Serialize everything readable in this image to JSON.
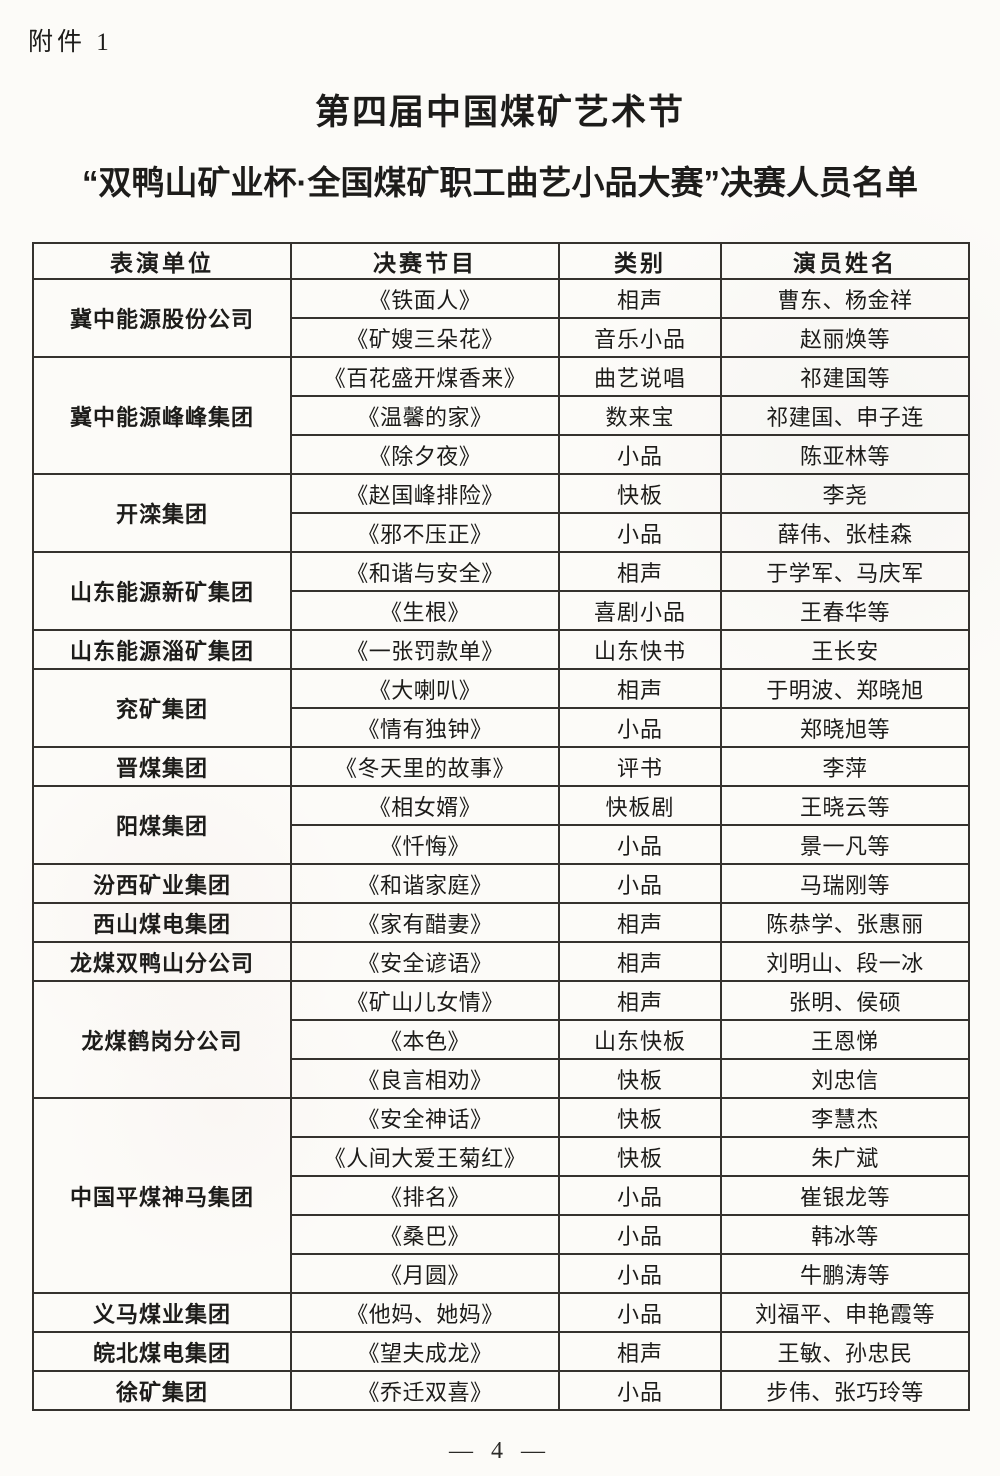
{
  "page": {
    "attachment_label": "附件 1",
    "title": "第四届中国煤矿艺术节",
    "subtitle": "“双鸭山矿业杯·全国煤矿职工曲艺小品大赛”决赛人员名单",
    "page_number": "— 4 —"
  },
  "table": {
    "headers": [
      "表演单位",
      "决赛节目",
      "类别",
      "演员姓名"
    ],
    "groups": [
      {
        "unit": "冀中能源股份公司",
        "rows": [
          {
            "program": "《铁面人》",
            "category": "相声",
            "performers": "曹东、杨金祥"
          },
          {
            "program": "《矿嫂三朵花》",
            "category": "音乐小品",
            "performers": "赵丽焕等"
          }
        ]
      },
      {
        "unit": "冀中能源峰峰集团",
        "rows": [
          {
            "program": "《百花盛开煤香来》",
            "category": "曲艺说唱",
            "performers": "祁建国等"
          },
          {
            "program": "《温馨的家》",
            "category": "数来宝",
            "performers": "祁建国、申子连"
          },
          {
            "program": "《除夕夜》",
            "category": "小品",
            "performers": "陈亚林等"
          }
        ]
      },
      {
        "unit": "开滦集团",
        "rows": [
          {
            "program": "《赵国峰排险》",
            "category": "快板",
            "performers": "李尧"
          },
          {
            "program": "《邪不压正》",
            "category": "小品",
            "performers": "薛伟、张桂森"
          }
        ]
      },
      {
        "unit": "山东能源新矿集团",
        "rows": [
          {
            "program": "《和谐与安全》",
            "category": "相声",
            "performers": "于学军、马庆军"
          },
          {
            "program": "《生根》",
            "category": "喜剧小品",
            "performers": "王春华等"
          }
        ]
      },
      {
        "unit": "山东能源淄矿集团",
        "rows": [
          {
            "program": "《一张罚款单》",
            "category": "山东快书",
            "performers": "王长安"
          }
        ]
      },
      {
        "unit": "兖矿集团",
        "rows": [
          {
            "program": "《大喇叭》",
            "category": "相声",
            "performers": "于明波、郑晓旭"
          },
          {
            "program": "《情有独钟》",
            "category": "小品",
            "performers": "郑晓旭等"
          }
        ]
      },
      {
        "unit": "晋煤集团",
        "rows": [
          {
            "program": "《冬天里的故事》",
            "category": "评书",
            "performers": "李萍"
          }
        ]
      },
      {
        "unit": "阳煤集团",
        "rows": [
          {
            "program": "《相女婿》",
            "category": "快板剧",
            "performers": "王晓云等"
          },
          {
            "program": "《忏悔》",
            "category": "小品",
            "performers": "景一凡等"
          }
        ]
      },
      {
        "unit": "汾西矿业集团",
        "rows": [
          {
            "program": "《和谐家庭》",
            "category": "小品",
            "performers": "马瑞刚等"
          }
        ]
      },
      {
        "unit": "西山煤电集团",
        "rows": [
          {
            "program": "《家有醋妻》",
            "category": "相声",
            "performers": "陈恭学、张惠丽"
          }
        ]
      },
      {
        "unit": "龙煤双鸭山分公司",
        "rows": [
          {
            "program": "《安全谚语》",
            "category": "相声",
            "performers": "刘明山、段一冰"
          }
        ]
      },
      {
        "unit": "龙煤鹤岗分公司",
        "rows": [
          {
            "program": "《矿山儿女情》",
            "category": "相声",
            "performers": "张明、侯硕"
          },
          {
            "program": "《本色》",
            "category": "山东快板",
            "performers": "王恩悌"
          },
          {
            "program": "《良言相劝》",
            "category": "快板",
            "performers": "刘忠信"
          }
        ]
      },
      {
        "unit": "中国平煤神马集团",
        "rows": [
          {
            "program": "《安全神话》",
            "category": "快板",
            "performers": "李慧杰"
          },
          {
            "program": "《人间大爱王菊红》",
            "category": "快板",
            "performers": "朱广斌"
          },
          {
            "program": "《排名》",
            "category": "小品",
            "performers": "崔银龙等"
          },
          {
            "program": "《桑巴》",
            "category": "小品",
            "performers": "韩冰等"
          },
          {
            "program": "《月圆》",
            "category": "小品",
            "performers": "牛鹏涛等"
          }
        ]
      },
      {
        "unit": "义马煤业集团",
        "rows": [
          {
            "program": "《他妈、她妈》",
            "category": "小品",
            "performers": "刘福平、申艳霞等"
          }
        ]
      },
      {
        "unit": "皖北煤电集团",
        "rows": [
          {
            "program": "《望夫成龙》",
            "category": "相声",
            "performers": "王敏、孙忠民"
          }
        ]
      },
      {
        "unit": "徐矿集团",
        "rows": [
          {
            "program": "《乔迁双喜》",
            "category": "小品",
            "performers": "步伟、张巧玲等"
          }
        ]
      }
    ]
  }
}
